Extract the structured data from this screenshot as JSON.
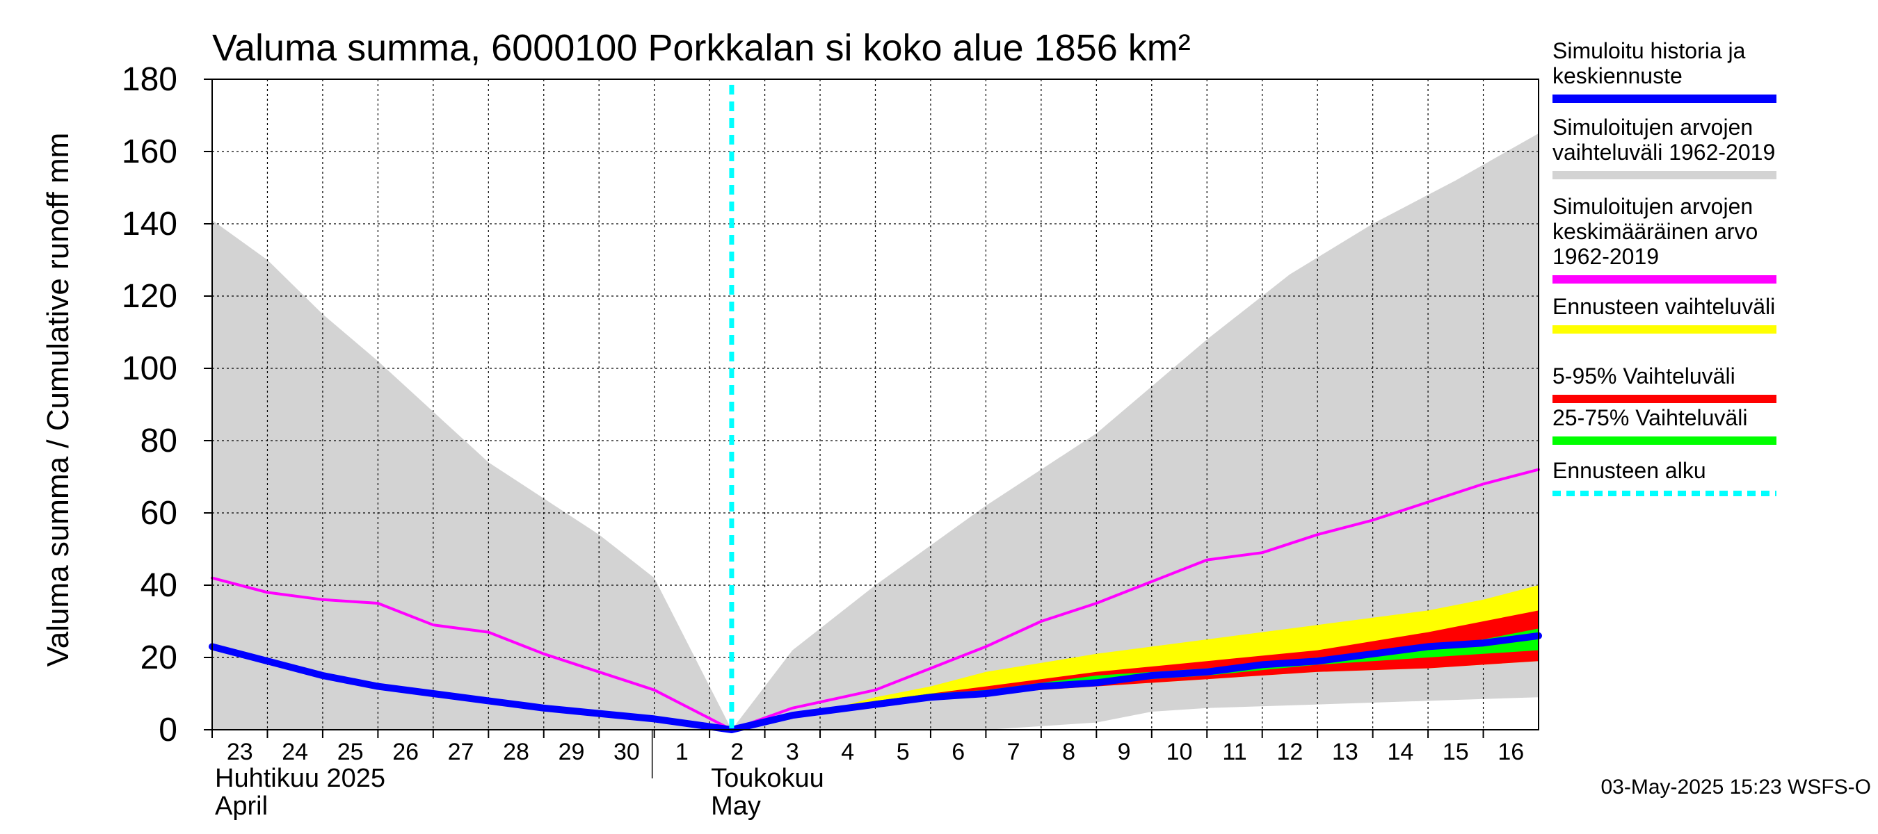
{
  "chart_data": {
    "type": "area",
    "title": "Valuma summa, 6000100 Porkkalan si koko alue 1856 km²",
    "ylabel": "Valuma summa / Cumulative runoff    mm",
    "ylim": [
      0,
      180
    ],
    "yticks": [
      "0",
      "20",
      "40",
      "60",
      "80",
      "100",
      "120",
      "140",
      "160",
      "180"
    ],
    "grid": true,
    "x_days": [
      "23",
      "24",
      "25",
      "26",
      "27",
      "28",
      "29",
      "30",
      "1",
      "2",
      "3",
      "4",
      "5",
      "6",
      "7",
      "8",
      "9",
      "10",
      "11",
      "12",
      "13",
      "14",
      "15",
      "16"
    ],
    "x_day_index": [
      0,
      1,
      2,
      3,
      4,
      5,
      6,
      7,
      8,
      9,
      10,
      11,
      12,
      13,
      14,
      15,
      16,
      17,
      18,
      19,
      20,
      21,
      22,
      23
    ],
    "month_labels": {
      "april_fi": "Huhtikuu  2025",
      "april_en": "April",
      "may_fi": "Toukokuu",
      "may_en": "May"
    },
    "forecast_start_day_index": 9.4,
    "series": {
      "sim_range_upper": {
        "x": [
          0,
          1,
          2,
          3,
          4,
          5,
          6,
          7,
          8,
          9.4,
          10.5,
          12,
          14,
          16,
          18,
          19.5,
          21,
          22.5,
          24
        ],
        "values": [
          141,
          130,
          115,
          102,
          88,
          74,
          64,
          54,
          42,
          0,
          22,
          40,
          62,
          82,
          108,
          126,
          140,
          152,
          165
        ]
      },
      "sim_range_lower": {
        "x": [
          0,
          9.4,
          14,
          16,
          17,
          18,
          20,
          22,
          24
        ],
        "values": [
          0,
          0,
          0,
          2,
          5,
          6,
          7,
          8,
          9
        ]
      },
      "sim_mean": {
        "x": [
          0,
          1,
          2,
          3,
          4,
          5,
          6,
          7,
          8,
          9.4,
          10.5,
          12,
          13,
          14,
          15,
          16,
          17,
          18,
          19,
          20,
          21,
          22,
          23,
          24
        ],
        "values": [
          42,
          38,
          36,
          35,
          29,
          27,
          21,
          16,
          11,
          0,
          6,
          11,
          17,
          23,
          30,
          35,
          41,
          47,
          49,
          54,
          58,
          63,
          68,
          72
        ]
      },
      "forecast_range": {
        "x": [
          9.4,
          11,
          12,
          13,
          14,
          16,
          18,
          20,
          22,
          23,
          24
        ],
        "upper": [
          0,
          5,
          9,
          12,
          16,
          21,
          25,
          29,
          33,
          36,
          40
        ],
        "lower": [
          0,
          5,
          7,
          9,
          10,
          12,
          14,
          16,
          17,
          18,
          19
        ]
      },
      "p5_95": {
        "x": [
          9.4,
          11,
          12,
          13,
          14,
          16,
          18,
          20,
          22,
          23,
          24
        ],
        "upper": [
          0,
          5,
          8,
          10,
          12,
          16,
          19,
          22,
          27,
          30,
          33
        ],
        "lower": [
          0,
          5,
          7,
          9,
          10,
          12,
          14,
          16,
          17,
          18,
          19
        ]
      },
      "p25_75": {
        "x": [
          9.4,
          11,
          12,
          13,
          14,
          16,
          18,
          20,
          22,
          23,
          24
        ],
        "upper": [
          0,
          5,
          8,
          10,
          11,
          15,
          17,
          20,
          23,
          25,
          28
        ],
        "lower": [
          0,
          5,
          7,
          9,
          10,
          13,
          15,
          18,
          20,
          21,
          22
        ]
      },
      "history_median": {
        "x": [
          0,
          1,
          2,
          3,
          4,
          5,
          6,
          7,
          8,
          9.4,
          10.5,
          12,
          13,
          14,
          15,
          16,
          17,
          18,
          19,
          20,
          21,
          22,
          23,
          24
        ],
        "values": [
          23,
          19,
          15,
          12,
          10,
          8,
          6,
          4.5,
          3,
          0,
          4,
          7,
          9,
          10,
          12,
          13,
          15,
          16,
          18,
          19,
          21,
          23,
          24,
          26
        ]
      }
    },
    "legend": [
      {
        "text": "Simuloitu historia ja\nkeskiennuste",
        "color": "#0000ff",
        "style": "solid"
      },
      {
        "text": "Simuloitujen arvojen\nvaihteluväli 1962-2019",
        "color": "#d3d3d3",
        "style": "solid"
      },
      {
        "text": "Simuloitujen arvojen\nkeskimääräinen arvo\n   1962-2019",
        "color": "#ff00ff",
        "style": "solid"
      },
      {
        "text": "Ennusteen vaihteluväli",
        "color": "#ffff00",
        "style": "solid"
      },
      {
        "text": "5-95% Vaihteluväli",
        "color": "#ff0000",
        "style": "solid"
      },
      {
        "text": "25-75% Vaihteluväli",
        "color": "#00ff00",
        "style": "solid"
      },
      {
        "text": "Ennusteen alku",
        "color": "#00ffff",
        "style": "dashed"
      }
    ],
    "footer": "03-May-2025 15:23 WSFS-O"
  },
  "colors": {
    "sim_range": "#d3d3d3",
    "sim_mean": "#ff00ff",
    "history": "#0000ff",
    "forecast_range": "#ffff00",
    "p5_95": "#ff0000",
    "p25_75": "#00ff00",
    "forecast_start": "#00ffff"
  }
}
